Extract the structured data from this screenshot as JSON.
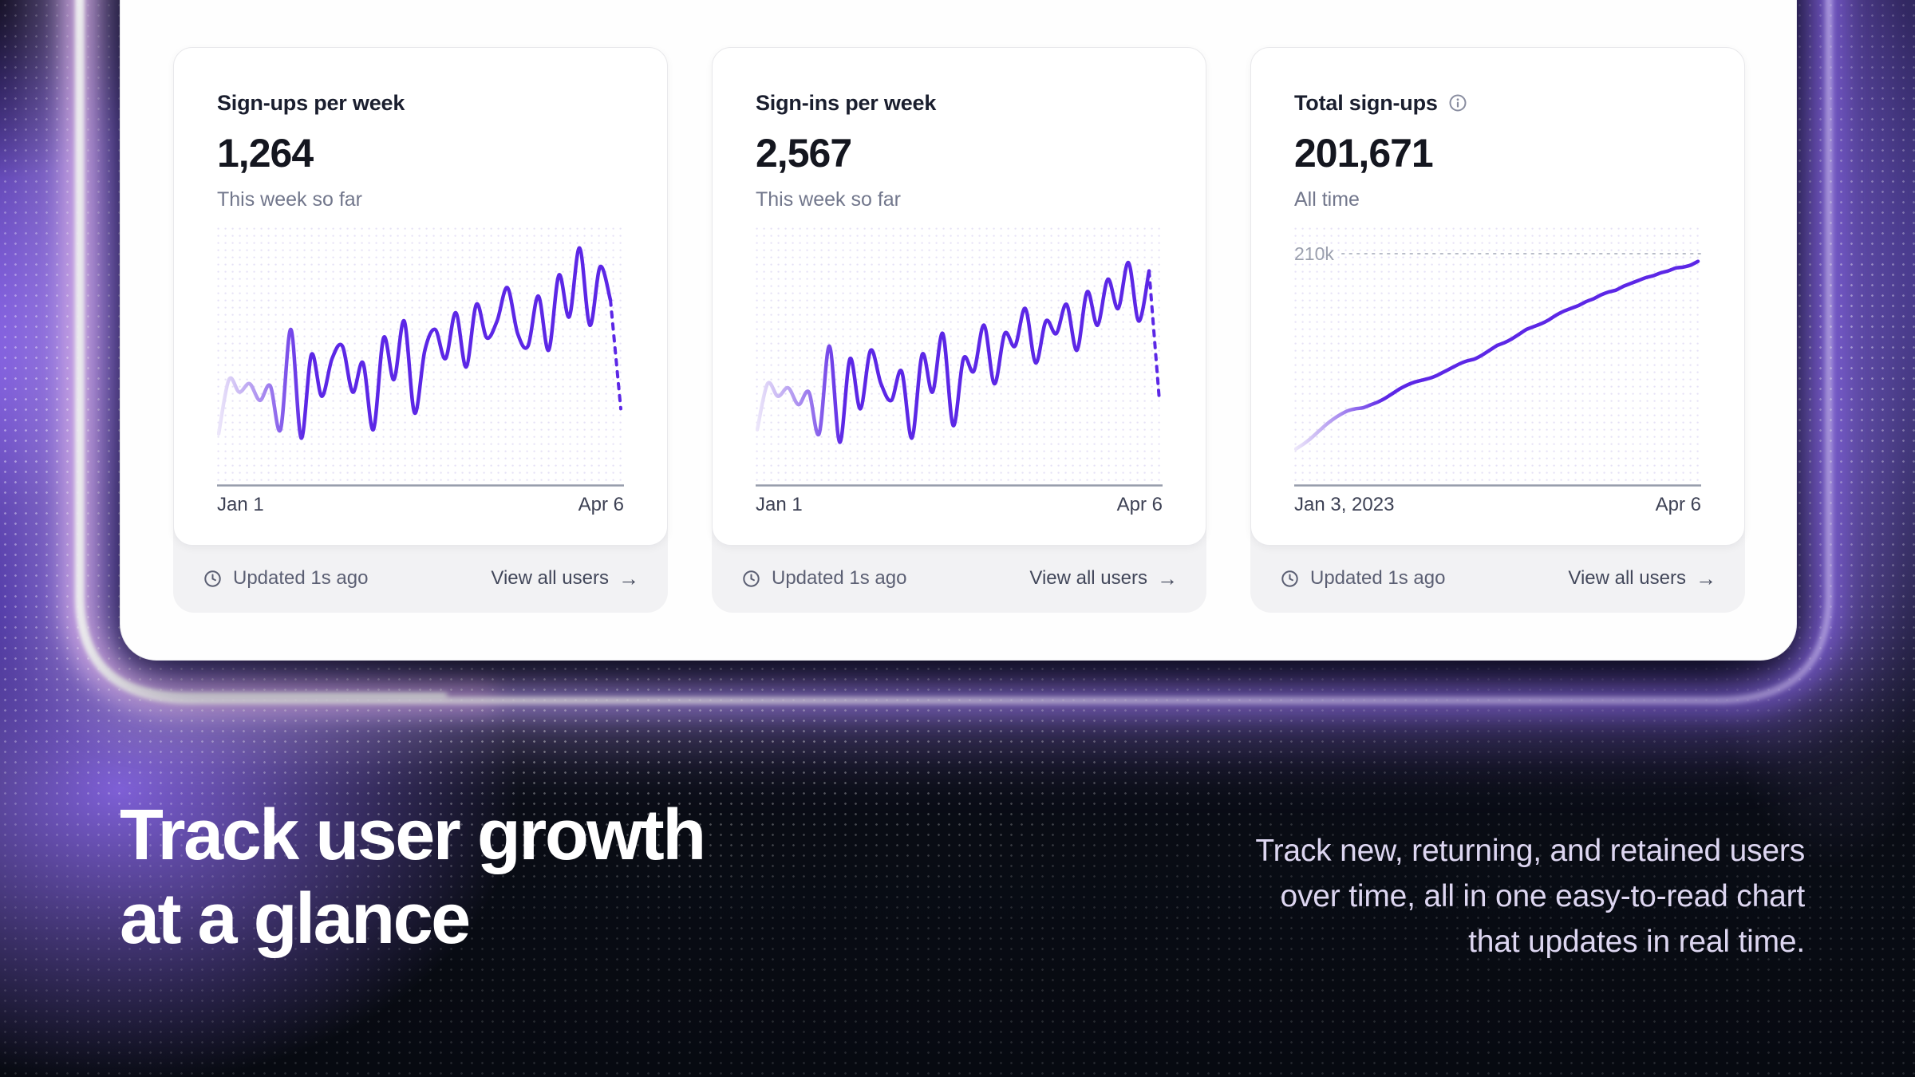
{
  "colors": {
    "accent_line": "#5c27e6",
    "accent_line_light": "#cdbdf4",
    "chart_dots": "#cfc8ee",
    "axis": "#969cab",
    "ref_line": "#b9bdc9",
    "panel_bg": "#fefefe",
    "group_bg": "#f2f2f4",
    "dark_bg": "#0a0e16",
    "glow_purple": "#8f6cf2",
    "heading_text": "#ffffff",
    "desc_text": "#ddd6f1"
  },
  "cards": [
    {
      "title": "Sign-ups per week",
      "has_info": false,
      "value": "1,264",
      "subtitle": "This week so far",
      "x_start": "Jan 1",
      "x_end": "Apr 6",
      "footer": {
        "updated": "Updated 1s ago",
        "link": "View all users",
        "arrow_icon": "→"
      }
    },
    {
      "title": "Sign-ins per week",
      "has_info": false,
      "value": "2,567",
      "subtitle": "This week so far",
      "x_start": "Jan 1",
      "x_end": "Apr 6",
      "footer": {
        "updated": "Updated 1s ago",
        "link": "View all users",
        "arrow_icon": "→"
      }
    },
    {
      "title": "Total sign-ups",
      "has_info": true,
      "value": "201,671",
      "subtitle": "All time",
      "x_start": "Jan 3, 2023",
      "x_end": "Apr 6",
      "footer": {
        "updated": "Updated 1s ago",
        "link": "View all users",
        "arrow_icon": "→"
      }
    }
  ],
  "chart_data": [
    {
      "type": "line",
      "name": "signups-per-week",
      "title": "Sign-ups per week",
      "x_range": [
        "Jan 1",
        "Apr 6"
      ],
      "y_scale": "relative (no y axis shown)",
      "y_max": 110,
      "smooth": 1,
      "fade_in_start": true,
      "values": [
        10,
        36,
        30,
        34,
        26,
        33,
        12,
        60,
        8,
        48,
        28,
        46,
        52,
        30,
        44,
        12,
        56,
        36,
        64,
        20,
        50,
        60,
        46,
        68,
        42,
        72,
        56,
        64,
        80,
        58,
        52,
        76,
        50,
        86,
        66,
        99,
        62,
        90,
        74
      ],
      "dashed_values": [
        22
      ],
      "note": "dashed tail = current partial week projection"
    },
    {
      "type": "line",
      "name": "signins-per-week",
      "title": "Sign-ins per week",
      "x_range": [
        "Jan 1",
        "Apr 6"
      ],
      "y_scale": "relative (no y axis shown)",
      "y_max": 110,
      "smooth": 1,
      "fade_in_start": true,
      "values": [
        12,
        34,
        28,
        32,
        24,
        30,
        10,
        52,
        6,
        46,
        22,
        50,
        34,
        26,
        40,
        8,
        48,
        30,
        58,
        14,
        46,
        40,
        62,
        34,
        58,
        52,
        70,
        44,
        64,
        58,
        72,
        50,
        78,
        62,
        84,
        70,
        92,
        64,
        88
      ],
      "dashed_values": [
        26
      ],
      "note": "dashed tail = current partial week projection"
    },
    {
      "type": "line",
      "name": "total-signups",
      "title": "Total sign-ups",
      "x_range": [
        "Jan 3, 2023",
        "Apr 6"
      ],
      "y_scale": "thousands of users",
      "y_max": 240,
      "smooth": 0.5,
      "fade_in_start": true,
      "ref_line": {
        "value": 210,
        "label": "210k"
      },
      "values": [
        6,
        11,
        17,
        24,
        31,
        37,
        42,
        46,
        48,
        49,
        52,
        55,
        59,
        64,
        69,
        73,
        76,
        78,
        80,
        83,
        87,
        91,
        95,
        98,
        100,
        104,
        109,
        114,
        117,
        121,
        126,
        131,
        134,
        137,
        141,
        146,
        150,
        153,
        156,
        160,
        163,
        167,
        170,
        172,
        176,
        179,
        182,
        185,
        187,
        190,
        192,
        195,
        196,
        198,
        202
      ],
      "dashed_values": [],
      "note": "cumulative sign-ups ending at 201,671 just below 210k reference"
    }
  ],
  "hero": {
    "heading_line1": "Track user growth",
    "heading_line2": "at a glance",
    "description": "Track new, returning, and retained users over time, all in one easy-to-read chart that updates in real time."
  }
}
